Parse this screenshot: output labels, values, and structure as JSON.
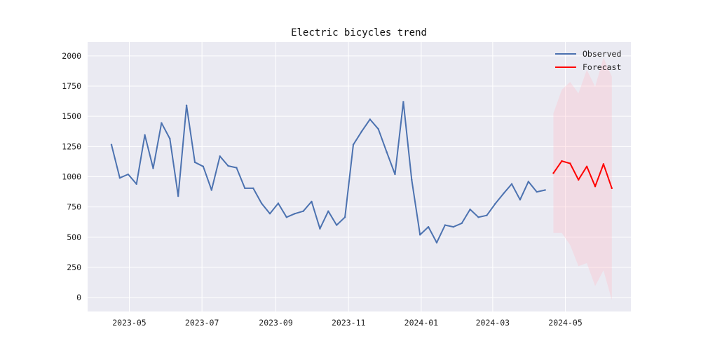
{
  "chart_data": {
    "type": "line",
    "title": "Electric bicycles trend",
    "xlabel": "",
    "ylabel": "",
    "x_axis": "date",
    "xlim": [
      "2023-03-27",
      "2024-06-25"
    ],
    "ylim": [
      -115,
      2115
    ],
    "y_ticks": [
      0,
      250,
      500,
      750,
      1000,
      1250,
      1500,
      1750,
      2000
    ],
    "x_ticks": [
      {
        "date": "2023-05-01",
        "label": "2023-05"
      },
      {
        "date": "2023-07-01",
        "label": "2023-07"
      },
      {
        "date": "2023-09-01",
        "label": "2023-09"
      },
      {
        "date": "2023-11-01",
        "label": "2023-11"
      },
      {
        "date": "2024-01-01",
        "label": "2024-01"
      },
      {
        "date": "2024-03-01",
        "label": "2024-03"
      },
      {
        "date": "2024-05-01",
        "label": "2024-05"
      }
    ],
    "grid": true,
    "legend_position": "top-right",
    "background_color": "#eaeaf2",
    "grid_color": "#ffffff",
    "series": [
      {
        "name": "Observed",
        "color": "#4c72b0",
        "dates": [
          "2023-04-16",
          "2023-04-23",
          "2023-04-30",
          "2023-05-07",
          "2023-05-14",
          "2023-05-21",
          "2023-05-28",
          "2023-06-04",
          "2023-06-11",
          "2023-06-18",
          "2023-06-25",
          "2023-07-02",
          "2023-07-09",
          "2023-07-16",
          "2023-07-23",
          "2023-07-30",
          "2023-08-06",
          "2023-08-13",
          "2023-08-20",
          "2023-08-27",
          "2023-09-03",
          "2023-09-10",
          "2023-09-17",
          "2023-09-24",
          "2023-10-01",
          "2023-10-08",
          "2023-10-15",
          "2023-10-22",
          "2023-10-29",
          "2023-11-05",
          "2023-11-12",
          "2023-11-19",
          "2023-11-26",
          "2023-12-03",
          "2023-12-10",
          "2023-12-17",
          "2023-12-24",
          "2023-12-31",
          "2024-01-07",
          "2024-01-14",
          "2024-01-21",
          "2024-01-28",
          "2024-02-04",
          "2024-02-11",
          "2024-02-18",
          "2024-02-25",
          "2024-03-03",
          "2024-03-10",
          "2024-03-17",
          "2024-03-24",
          "2024-03-31",
          "2024-04-07",
          "2024-04-14"
        ],
        "values": [
          1265,
          990,
          1020,
          940,
          1345,
          1070,
          1445,
          1315,
          840,
          1590,
          1120,
          1085,
          890,
          1170,
          1090,
          1075,
          905,
          905,
          780,
          695,
          780,
          665,
          695,
          715,
          795,
          570,
          715,
          600,
          665,
          1265,
          1375,
          1475,
          1395,
          1205,
          1020,
          1620,
          975,
          520,
          585,
          455,
          600,
          585,
          615,
          730,
          665,
          680,
          775,
          860,
          940,
          810,
          960,
          875,
          890
        ]
      },
      {
        "name": "Forecast",
        "color": "#ff0000",
        "dates": [
          "2024-04-21",
          "2024-04-28",
          "2024-05-05",
          "2024-05-12",
          "2024-05-19",
          "2024-05-26",
          "2024-06-02",
          "2024-06-09"
        ],
        "values": [
          1030,
          1130,
          1110,
          975,
          1085,
          920,
          1105,
          905
        ],
        "lower": [
          535,
          535,
          435,
          260,
          285,
          95,
          225,
          -20
        ],
        "upper": [
          1525,
          1720,
          1785,
          1690,
          1885,
          1745,
          1985,
          1830
        ],
        "band_color": "#ffc0cb"
      }
    ]
  }
}
